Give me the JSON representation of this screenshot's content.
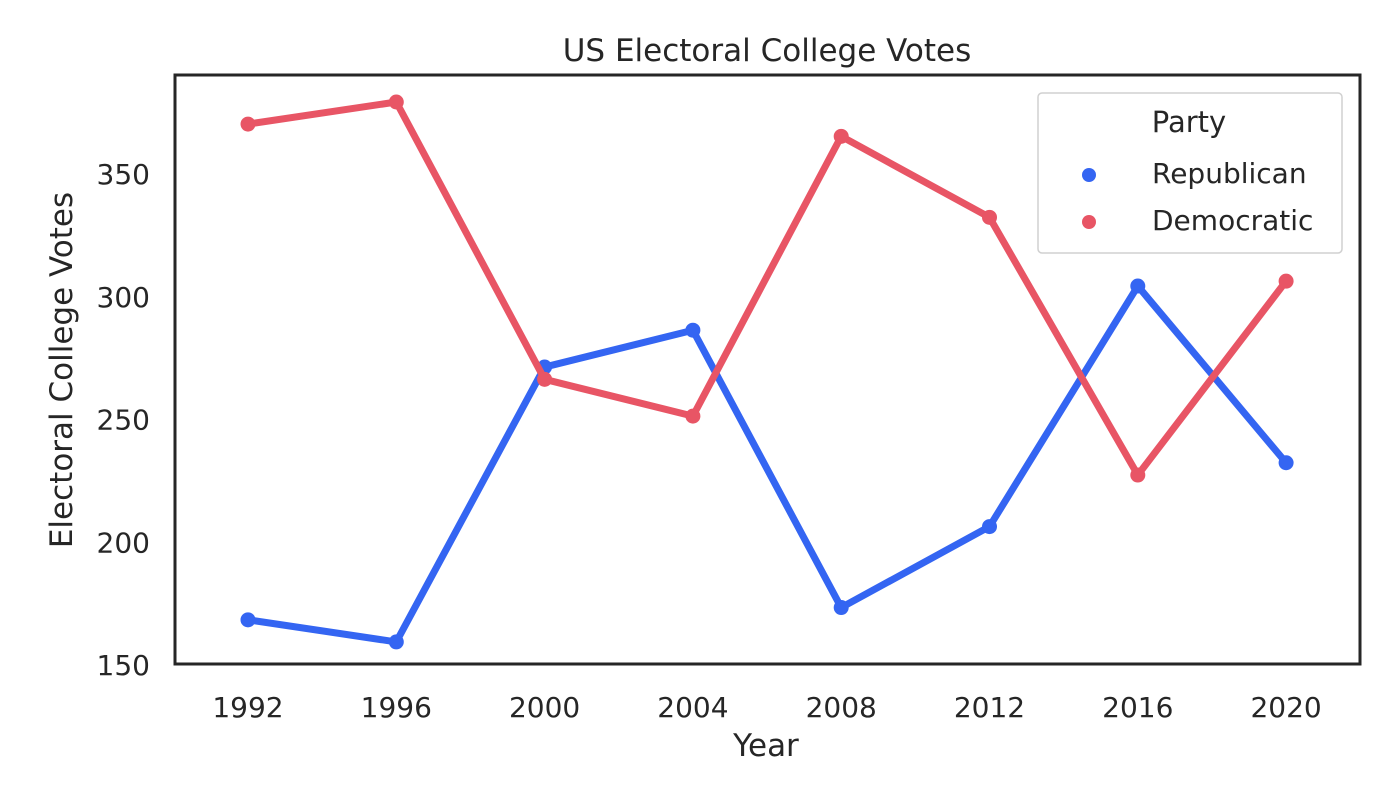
{
  "chart_data": {
    "type": "line",
    "title": "US Electoral College Votes",
    "xlabel": "Year",
    "ylabel": "Electoral College Votes",
    "categories": [
      "1992",
      "1996",
      "2000",
      "2004",
      "2008",
      "2012",
      "2016",
      "2020"
    ],
    "yticks": [
      150,
      200,
      250,
      300,
      350
    ],
    "ylim": [
      150,
      390
    ],
    "grid": false,
    "legend": {
      "title": "Party",
      "placement": "top-right"
    },
    "series": [
      {
        "name": "Republican",
        "color": "#3465f2",
        "values": [
          168,
          159,
          271,
          286,
          173,
          206,
          304,
          232
        ]
      },
      {
        "name": "Democratic",
        "color": "#e85565",
        "values": [
          370,
          379,
          266,
          251,
          365,
          332,
          227,
          306
        ]
      }
    ]
  }
}
